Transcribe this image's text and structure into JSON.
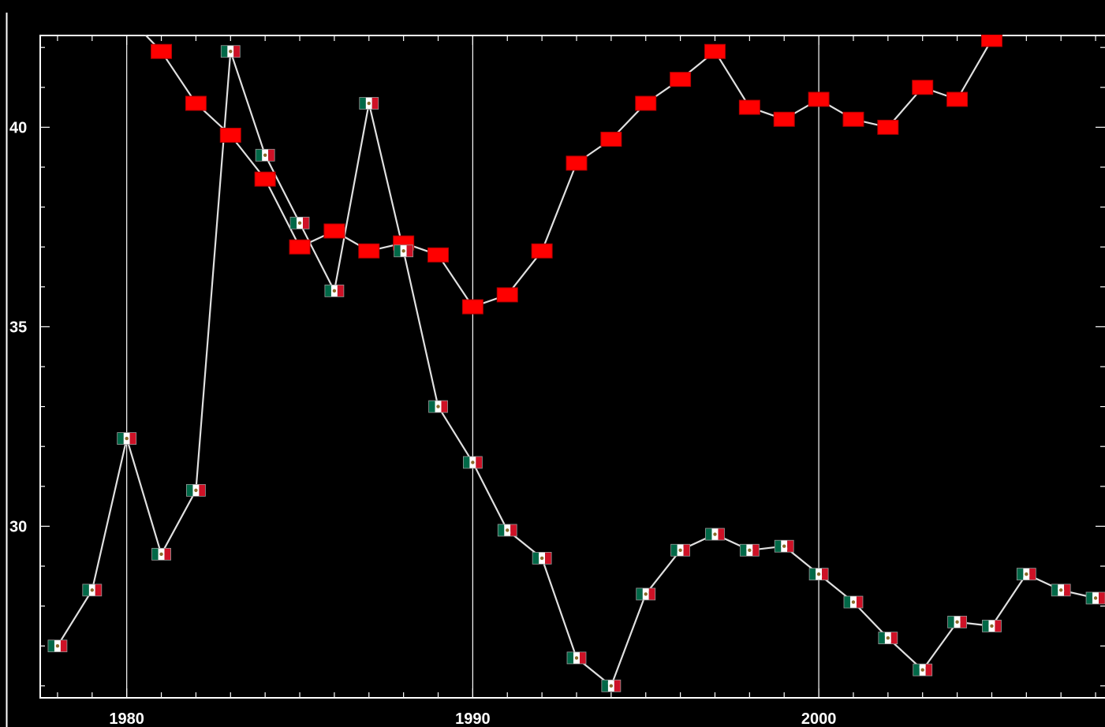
{
  "chart_data": {
    "type": "line",
    "title": "",
    "xlabel": "",
    "ylabel": "",
    "xlim": [
      1977.5,
      2008.5
    ],
    "ylim": [
      25.7,
      42.3
    ],
    "x_ticks": [
      1980,
      1990,
      2000
    ],
    "x_tick_labels": [
      "1980",
      "1990",
      "2000"
    ],
    "y_ticks": [
      30,
      35,
      40
    ],
    "y_tick_labels": [
      "30",
      "35",
      "40"
    ],
    "gridlines_x": [
      1980,
      1990,
      2000
    ],
    "grid": "vertical lines at major x ticks",
    "legend": "none",
    "background": "#000000",
    "line_color": "#e0e0e0",
    "series": [
      {
        "marker": "red-square",
        "color": "#ff0000",
        "x": [
          1980,
          1981,
          1982,
          1983,
          1984,
          1985,
          1986,
          1987,
          1988,
          1989,
          1990,
          1991,
          1992,
          1993,
          1994,
          1995,
          1996,
          1997,
          1998,
          1999,
          2000,
          2001,
          2002,
          2003,
          2004,
          2005
        ],
        "values": [
          42.8,
          41.9,
          40.6,
          39.8,
          38.7,
          37.0,
          37.4,
          36.9,
          37.1,
          36.8,
          35.5,
          35.8,
          36.9,
          39.1,
          39.7,
          40.6,
          41.2,
          41.9,
          40.5,
          40.2,
          40.7,
          40.2,
          40.0,
          41.0,
          40.7,
          42.2
        ]
      },
      {
        "marker": "mexico-flag",
        "colors": [
          "#006847",
          "#ffffff",
          "#ce1126"
        ],
        "x": [
          1978,
          1979,
          1980,
          1981,
          1982,
          1983,
          1984,
          1985,
          1986,
          1987,
          1988,
          1989,
          1990,
          1991,
          1992,
          1993,
          1994,
          1995,
          1996,
          1997,
          1998,
          1999,
          2000,
          2001,
          2002,
          2003,
          2004,
          2005,
          2006,
          2007,
          2008
        ],
        "values": [
          27.0,
          28.4,
          32.2,
          29.3,
          30.9,
          41.9,
          39.3,
          37.6,
          35.9,
          40.6,
          36.9,
          33.0,
          31.6,
          29.9,
          29.2,
          26.7,
          26.0,
          28.3,
          29.4,
          29.8,
          29.4,
          29.5,
          28.8,
          28.1,
          27.2,
          26.4,
          27.6,
          27.5,
          28.8,
          28.4,
          28.2
        ]
      }
    ]
  }
}
